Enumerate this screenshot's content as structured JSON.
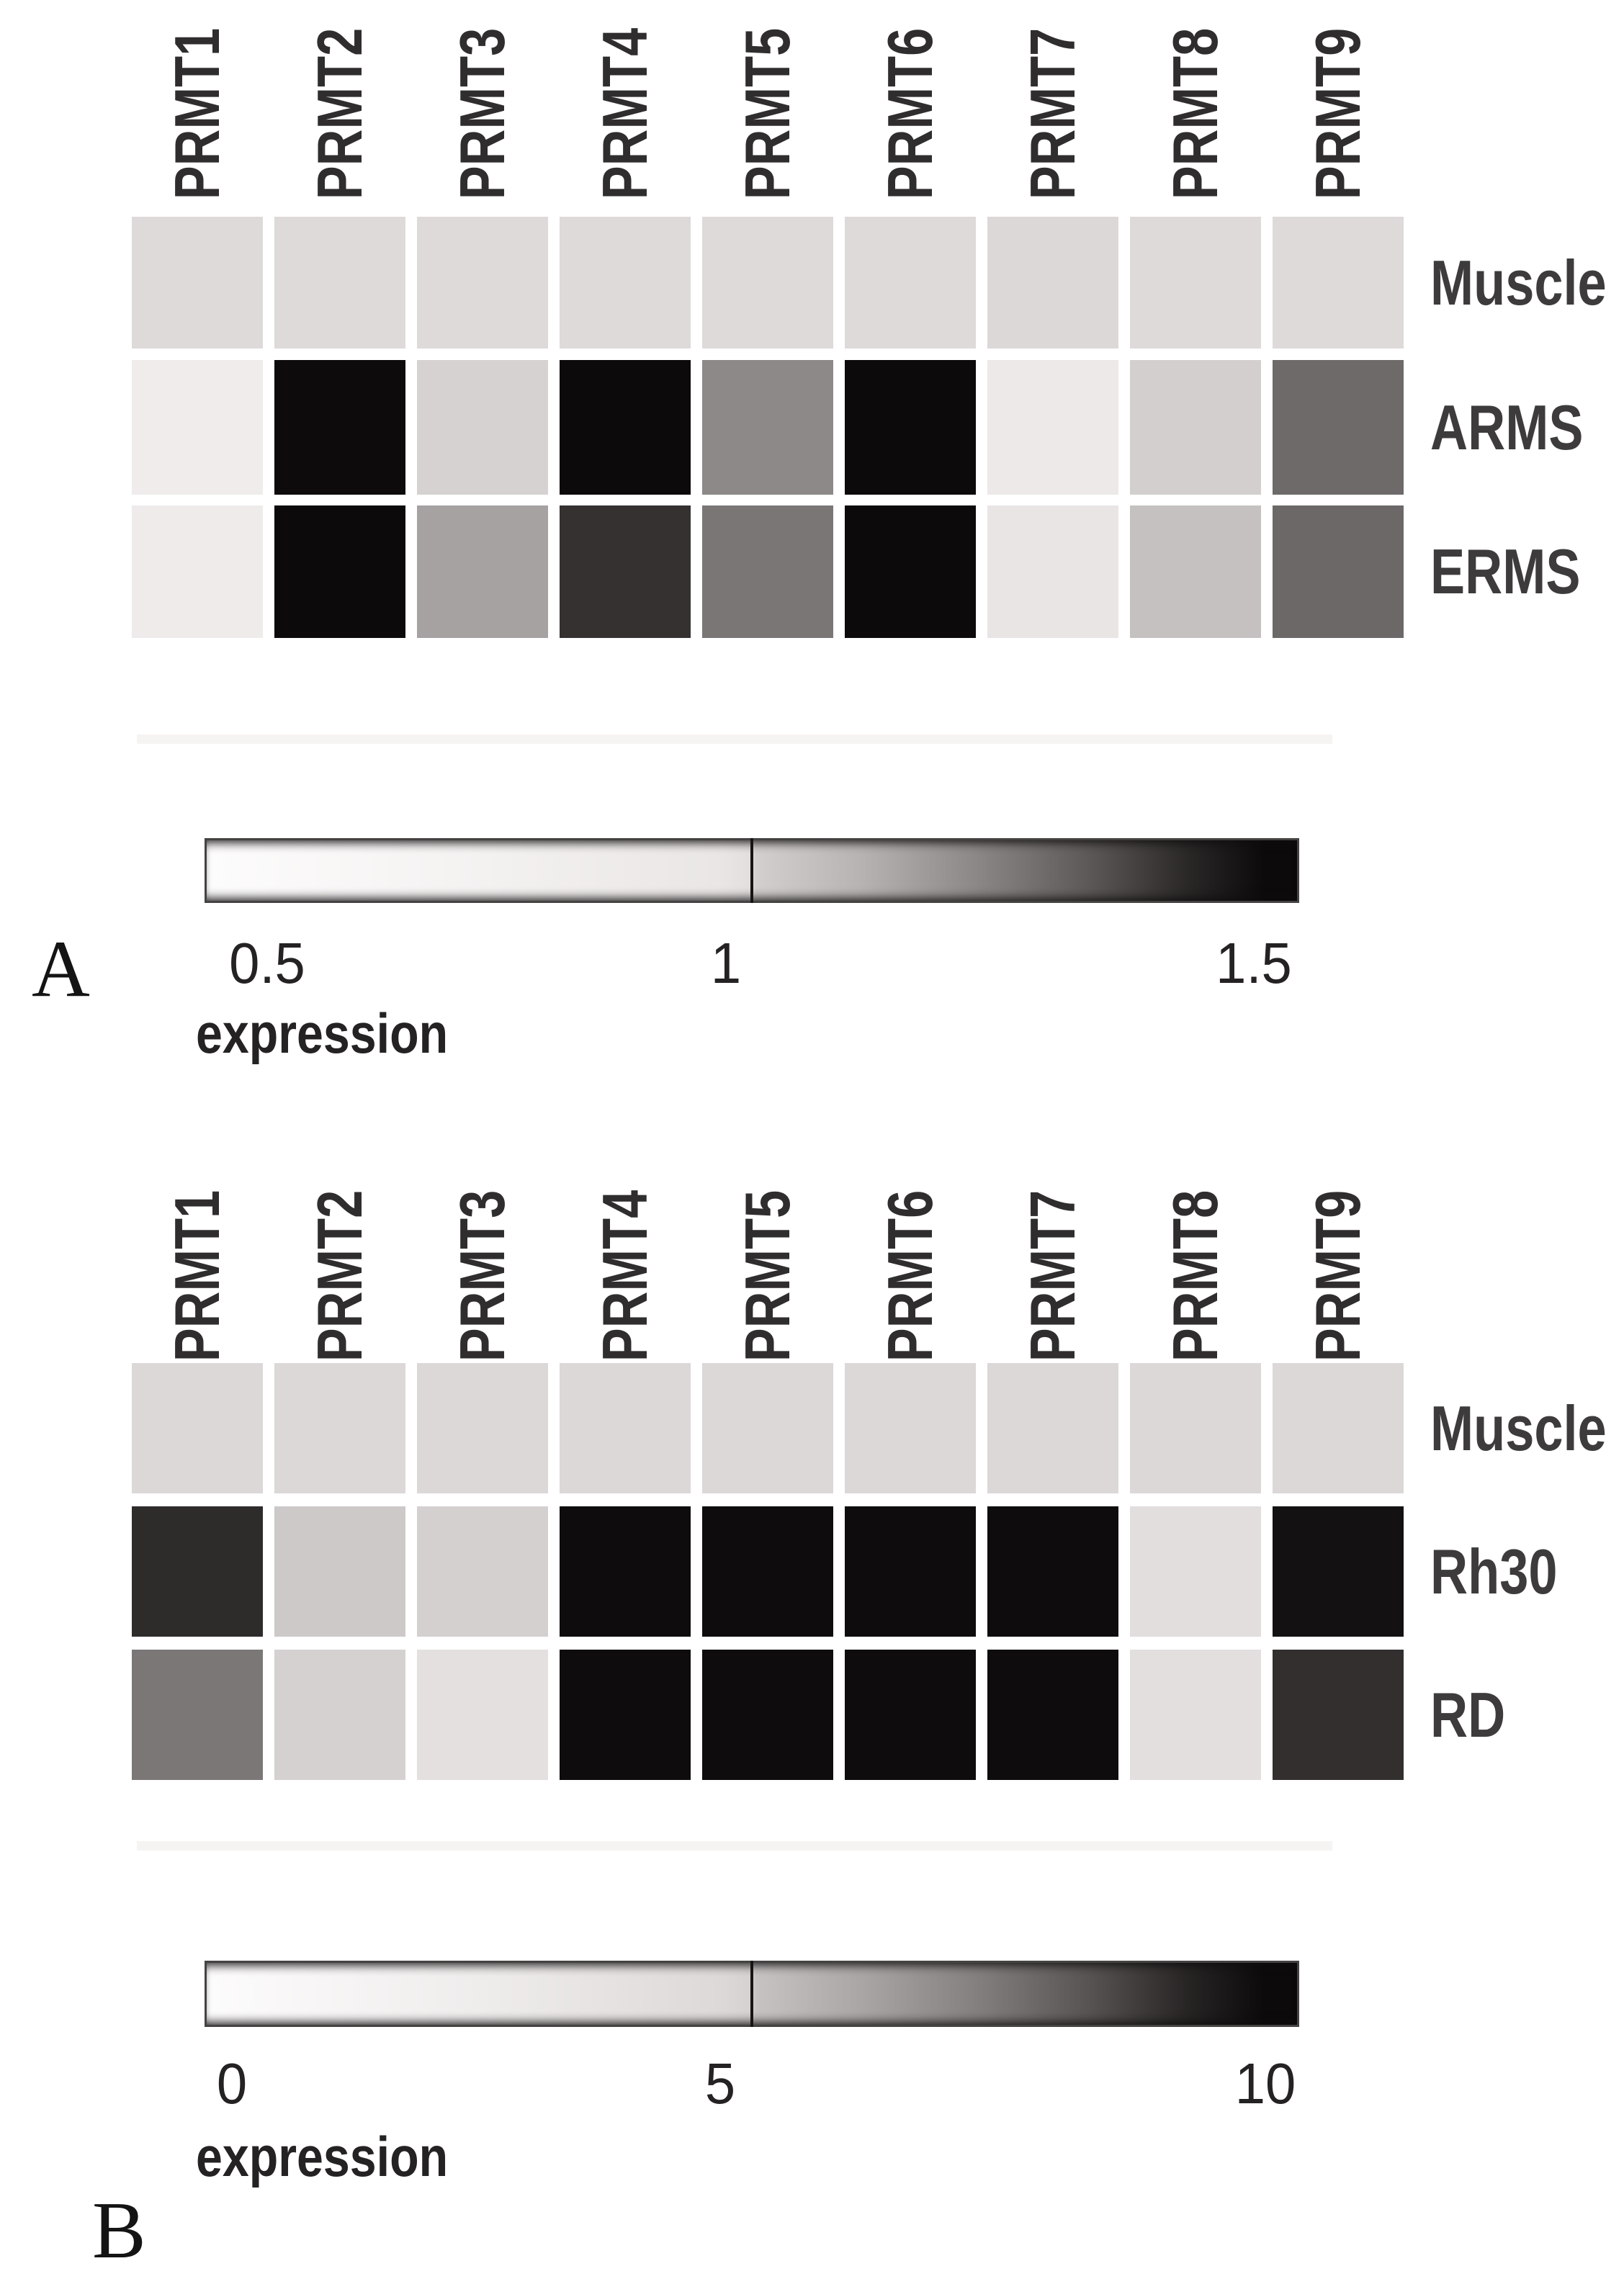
{
  "figure_type": "two-panel grayscale expression heatmap figure",
  "chart_data": [
    {
      "type": "heatmap",
      "panel_letter": "A",
      "columns": [
        "PRMT1",
        "PRMT2",
        "PRMT3",
        "PRMT4",
        "PRMT5",
        "PRMT6",
        "PRMT7",
        "PRMT8",
        "PRMT9"
      ],
      "rows": [
        "Muscle",
        "ARMS",
        "ERMS"
      ],
      "values_est": [
        [
          0.95,
          0.95,
          0.95,
          0.95,
          0.95,
          0.95,
          0.95,
          0.95,
          0.95
        ],
        [
          0.72,
          1.5,
          0.98,
          1.5,
          1.18,
          1.5,
          0.75,
          0.99,
          1.27
        ],
        [
          0.73,
          1.5,
          1.08,
          1.42,
          1.22,
          1.5,
          0.78,
          1.02,
          1.28
        ]
      ],
      "cell_colors": [
        [
          "#dedad9",
          "#dedad9",
          "#dedad9",
          "#dedad9",
          "#dedad9",
          "#dedad9",
          "#dcd8d7",
          "#dedad9",
          "#dddad9"
        ],
        [
          "#efeceb",
          "#0d0b0b",
          "#d6d2d1",
          "#0c0a0a",
          "#8d8988",
          "#0c0a0a",
          "#ece9e8",
          "#d3cfce",
          "#6e6a69"
        ],
        [
          "#eeebea",
          "#0c0a0a",
          "#a6a2a1",
          "#353131",
          "#7a7675",
          "#0c0a0a",
          "#e8e5e4",
          "#c5c1c0",
          "#6c6867"
        ]
      ],
      "colorbar": {
        "title": "expression",
        "ticks": [
          "0.5",
          "1",
          "1.5"
        ],
        "min": 0.5,
        "mid": 1.0,
        "max": 1.5,
        "min_color": "#fdfcfc",
        "mid_color": "#d8d5d4",
        "max_color": "#0c0a0a"
      }
    },
    {
      "type": "heatmap",
      "panel_letter": "B",
      "columns": [
        "PRMT1",
        "PRMT2",
        "PRMT3",
        "PRMT4",
        "PRMT5",
        "PRMT6",
        "PRMT7",
        "PRMT8",
        "PRMT9"
      ],
      "rows": [
        "Muscle",
        "Rh30",
        "RD"
      ],
      "values_est": [
        [
          4.4,
          4.4,
          4.4,
          4.4,
          4.4,
          4.4,
          4.4,
          4.4,
          4.4
        ],
        [
          9.4,
          5.2,
          5.0,
          10,
          10,
          10,
          10,
          4.1,
          9.9
        ],
        [
          7.6,
          5.0,
          3.9,
          10,
          10,
          10,
          10,
          4.0,
          9.3
        ]
      ],
      "cell_colors": [
        [
          "#dbd8d7",
          "#dbd8d7",
          "#dbd8d7",
          "#dbd8d7",
          "#dbd8d7",
          "#dbd8d7",
          "#dbd8d7",
          "#dbd8d7",
          "#dbd8d7"
        ],
        [
          "#2e2b2b",
          "#cdc9c8",
          "#d4d0cf",
          "#0e0c0c",
          "#0e0c0c",
          "#0e0c0c",
          "#0e0c0c",
          "#e1dedd",
          "#131111"
        ],
        [
          "#7b7777",
          "#d5d1d0",
          "#e3e0df",
          "#0e0c0c",
          "#0e0c0c",
          "#0e0c0c",
          "#0e0c0c",
          "#e2dfde",
          "#332f2f"
        ]
      ],
      "colorbar": {
        "title": "expression",
        "ticks": [
          "0",
          "5",
          "10"
        ],
        "min": 0,
        "mid": 5,
        "max": 10,
        "min_color": "#fdfcfc",
        "mid_color": "#cecbca",
        "max_color": "#0c0a0a"
      }
    }
  ]
}
